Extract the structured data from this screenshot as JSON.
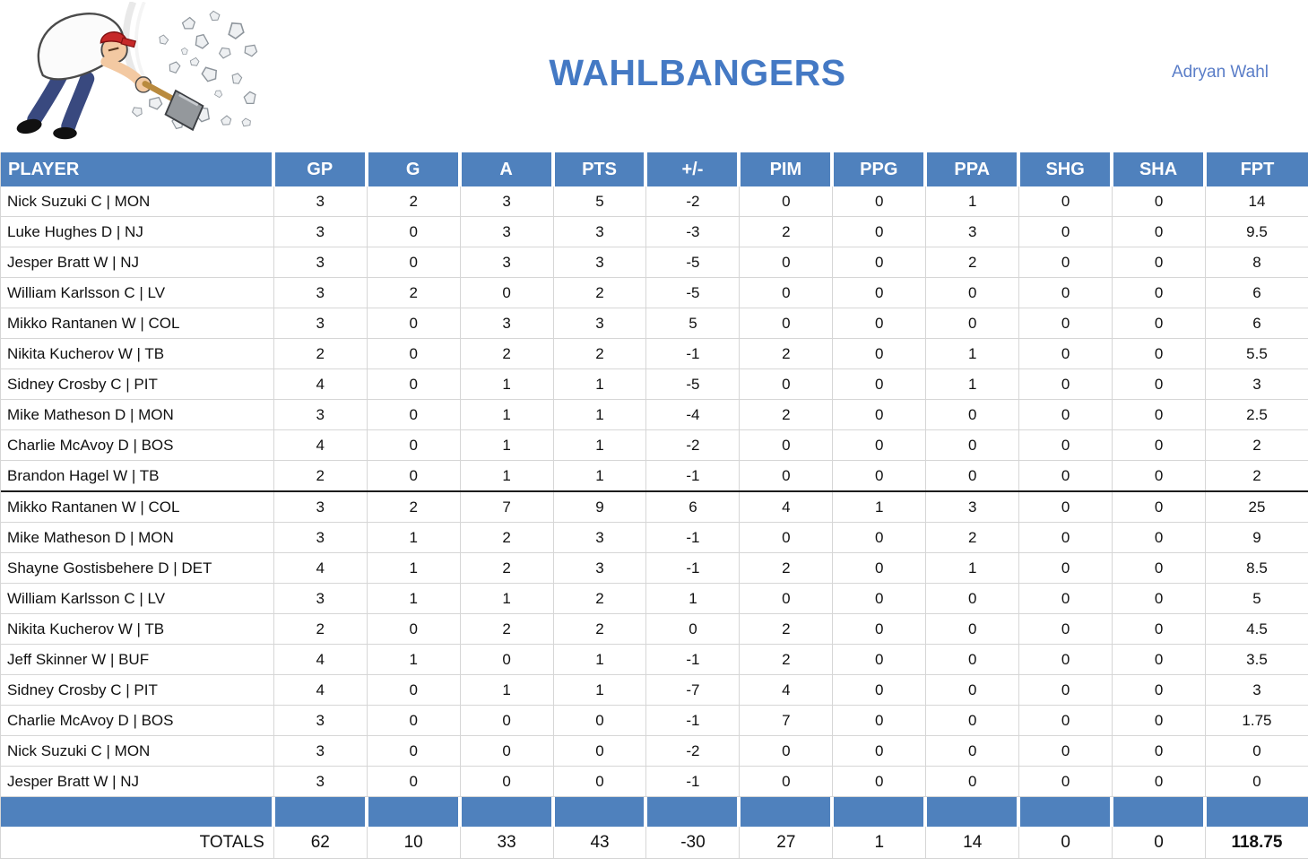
{
  "header": {
    "title": "WAHLBANGERS",
    "owner": "Adryan Wahl"
  },
  "logo": {
    "icon": "hammer-man-smashing-rocks"
  },
  "table": {
    "columns": [
      "PLAYER",
      "GP",
      "G",
      "A",
      "PTS",
      "+/-",
      "PIM",
      "PPG",
      "PPA",
      "SHG",
      "SHA",
      "FPT"
    ],
    "group_break_after": 9,
    "rows": [
      {
        "player": "Nick Suzuki C | MON",
        "values": [
          3,
          2,
          3,
          5,
          -2,
          0,
          0,
          1,
          0,
          0,
          14
        ]
      },
      {
        "player": "Luke Hughes D | NJ",
        "values": [
          3,
          0,
          3,
          3,
          -3,
          2,
          0,
          3,
          0,
          0,
          9.5
        ]
      },
      {
        "player": "Jesper Bratt W | NJ",
        "values": [
          3,
          0,
          3,
          3,
          -5,
          0,
          0,
          2,
          0,
          0,
          8
        ]
      },
      {
        "player": "William Karlsson C | LV",
        "values": [
          3,
          2,
          0,
          2,
          -5,
          0,
          0,
          0,
          0,
          0,
          6
        ]
      },
      {
        "player": "Mikko Rantanen W | COL",
        "values": [
          3,
          0,
          3,
          3,
          5,
          0,
          0,
          0,
          0,
          0,
          6
        ]
      },
      {
        "player": "Nikita Kucherov W | TB",
        "values": [
          2,
          0,
          2,
          2,
          -1,
          2,
          0,
          1,
          0,
          0,
          5.5
        ]
      },
      {
        "player": "Sidney Crosby C | PIT",
        "values": [
          4,
          0,
          1,
          1,
          -5,
          0,
          0,
          1,
          0,
          0,
          3
        ]
      },
      {
        "player": "Mike Matheson D | MON",
        "values": [
          3,
          0,
          1,
          1,
          -4,
          2,
          0,
          0,
          0,
          0,
          2.5
        ]
      },
      {
        "player": "Charlie McAvoy D | BOS",
        "values": [
          4,
          0,
          1,
          1,
          -2,
          0,
          0,
          0,
          0,
          0,
          2
        ]
      },
      {
        "player": "Brandon Hagel W | TB",
        "values": [
          2,
          0,
          1,
          1,
          -1,
          0,
          0,
          0,
          0,
          0,
          2
        ]
      },
      {
        "player": "Mikko Rantanen W | COL",
        "values": [
          3,
          2,
          7,
          9,
          6,
          4,
          1,
          3,
          0,
          0,
          25
        ]
      },
      {
        "player": "Mike Matheson D | MON",
        "values": [
          3,
          1,
          2,
          3,
          -1,
          0,
          0,
          2,
          0,
          0,
          9
        ]
      },
      {
        "player": "Shayne Gostisbehere D | DET",
        "values": [
          4,
          1,
          2,
          3,
          -1,
          2,
          0,
          1,
          0,
          0,
          8.5
        ]
      },
      {
        "player": "William Karlsson C | LV",
        "values": [
          3,
          1,
          1,
          2,
          1,
          0,
          0,
          0,
          0,
          0,
          5
        ]
      },
      {
        "player": "Nikita Kucherov W | TB",
        "values": [
          2,
          0,
          2,
          2,
          0,
          2,
          0,
          0,
          0,
          0,
          4.5
        ]
      },
      {
        "player": "Jeff Skinner W | BUF",
        "values": [
          4,
          1,
          0,
          1,
          -1,
          2,
          0,
          0,
          0,
          0,
          3.5
        ]
      },
      {
        "player": "Sidney Crosby C | PIT",
        "values": [
          4,
          0,
          1,
          1,
          -7,
          4,
          0,
          0,
          0,
          0,
          3
        ]
      },
      {
        "player": "Charlie McAvoy D | BOS",
        "values": [
          3,
          0,
          0,
          0,
          -1,
          7,
          0,
          0,
          0,
          0,
          1.75
        ]
      },
      {
        "player": "Nick Suzuki C | MON",
        "values": [
          3,
          0,
          0,
          0,
          -2,
          0,
          0,
          0,
          0,
          0,
          0
        ]
      },
      {
        "player": "Jesper Bratt W | NJ",
        "values": [
          3,
          0,
          0,
          0,
          -1,
          0,
          0,
          0,
          0,
          0,
          0
        ]
      }
    ],
    "totals": {
      "label": "TOTALS",
      "values": [
        62,
        10,
        33,
        43,
        -30,
        27,
        1,
        14,
        0,
        0,
        "118.75"
      ]
    }
  },
  "colors": {
    "header_bg": "#4f81bd",
    "title_color": "#4479c4",
    "owner_color": "#5b7ec8",
    "gridline": "#d6d6d6",
    "divider": "#1c1c1c"
  }
}
